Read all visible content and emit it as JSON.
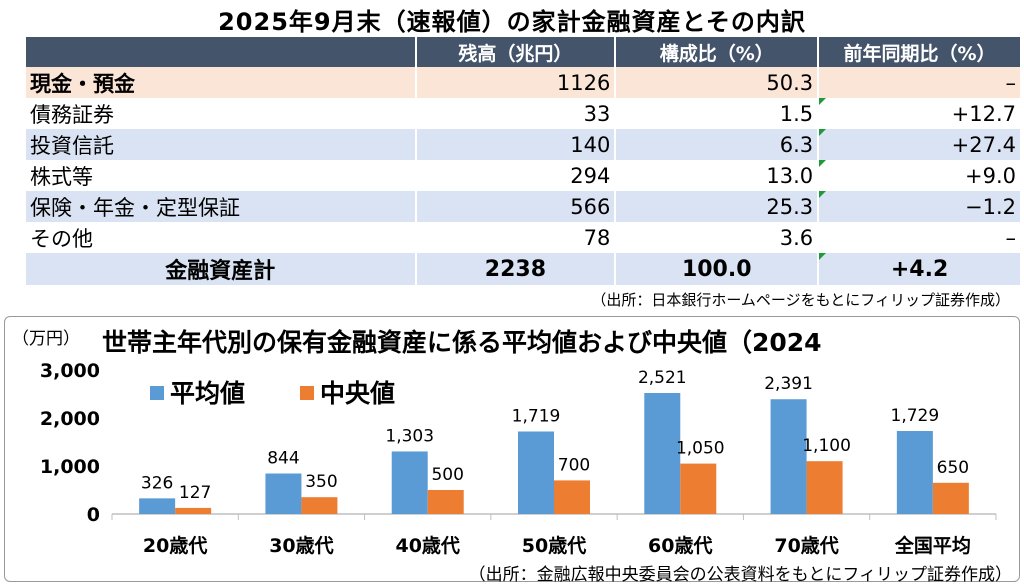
{
  "table": {
    "title": "2025年9月末（速報値）の家計金融資産とその内訳",
    "headers": [
      "",
      "残高（兆円）",
      "構成比（%）",
      "前年同期比（%）"
    ],
    "rows": [
      {
        "label": "現金・預金",
        "balance": "1126",
        "share": "50.3",
        "yoy": "–"
      },
      {
        "label": "債務証券",
        "balance": "33",
        "share": "1.5",
        "yoy": "+12.7"
      },
      {
        "label": "投資信託",
        "balance": "140",
        "share": "6.3",
        "yoy": "+27.4"
      },
      {
        "label": "株式等",
        "balance": "294",
        "share": "13.0",
        "yoy": "+9.0"
      },
      {
        "label": "保険・年金・定型保証",
        "balance": "566",
        "share": "25.3",
        "yoy": "−1.2"
      },
      {
        "label": "その他",
        "balance": "78",
        "share": "3.6",
        "yoy": "–"
      }
    ],
    "total": {
      "label": "金融資産計",
      "balance": "2238",
      "share": "100.0",
      "yoy": "+4.2"
    },
    "source": "（出所：日本銀行ホームページをもとにフィリップ証券作成）"
  },
  "chart_data": {
    "type": "bar",
    "title": "世帯主年代別の保有金融資産に係る平均値および中央値（2024",
    "unit_label": "（万円）",
    "categories": [
      "20歳代",
      "30歳代",
      "40歳代",
      "50歳代",
      "60歳代",
      "70歳代",
      "全国平均"
    ],
    "series": [
      {
        "name": "平均値",
        "color": "#5b9bd5",
        "values": [
          326,
          844,
          1303,
          1719,
          2521,
          2391,
          1729
        ]
      },
      {
        "name": "中央値",
        "color": "#ed7d31",
        "values": [
          127,
          350,
          500,
          700,
          1050,
          1100,
          650
        ]
      }
    ],
    "ylim": [
      0,
      3000
    ],
    "yticks": [
      "0",
      "1,000",
      "2,000",
      "3,000"
    ],
    "value_labels_avg": [
      "326",
      "844",
      "1,303",
      "1,719",
      "2,521",
      "2,391",
      "1,729"
    ],
    "value_labels_med": [
      "127",
      "350",
      "500",
      "700",
      "1,050",
      "1,100",
      "650"
    ],
    "legend_position": "top-left",
    "grid": false,
    "source": "（出所：金融広報中央委員会の公表資料をもとにフィリップ証券作成）"
  }
}
